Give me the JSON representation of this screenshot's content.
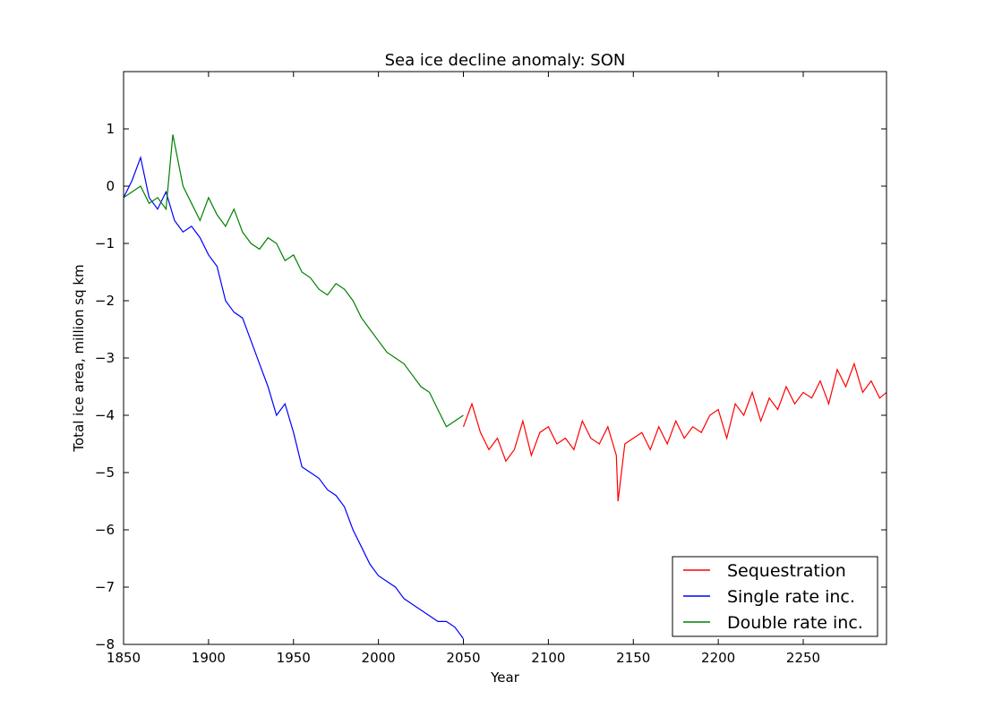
{
  "chart_data": {
    "type": "line",
    "title": "Sea ice decline anomaly: SON",
    "xlabel": "Year",
    "ylabel": "Total ice area, million sq km",
    "xlim": [
      1850,
      2299
    ],
    "ylim": [
      -8,
      2
    ],
    "xticks": [
      1850,
      1900,
      1950,
      2000,
      2050,
      2100,
      2150,
      2200,
      2250
    ],
    "yticks": [
      1,
      0,
      -1,
      -2,
      -3,
      -4,
      -5,
      -6,
      -7,
      -8
    ],
    "grid": false,
    "legend_position": "lower-right",
    "series": [
      {
        "name": "Sequestration",
        "color": "#ff0000",
        "x": [
          2050,
          2055,
          2060,
          2065,
          2070,
          2075,
          2080,
          2085,
          2090,
          2095,
          2100,
          2105,
          2110,
          2115,
          2120,
          2125,
          2130,
          2135,
          2140,
          2141,
          2145,
          2150,
          2155,
          2160,
          2165,
          2170,
          2175,
          2180,
          2185,
          2190,
          2195,
          2200,
          2205,
          2210,
          2215,
          2220,
          2225,
          2230,
          2235,
          2240,
          2245,
          2250,
          2255,
          2260,
          2265,
          2270,
          2275,
          2280,
          2285,
          2290,
          2295,
          2299
        ],
        "y": [
          -4.2,
          -3.8,
          -4.3,
          -4.6,
          -4.4,
          -4.8,
          -4.6,
          -4.1,
          -4.7,
          -4.3,
          -4.2,
          -4.5,
          -4.4,
          -4.6,
          -4.1,
          -4.4,
          -4.5,
          -4.2,
          -4.7,
          -5.5,
          -4.5,
          -4.4,
          -4.3,
          -4.6,
          -4.2,
          -4.5,
          -4.1,
          -4.4,
          -4.2,
          -4.3,
          -4.0,
          -3.9,
          -4.4,
          -3.8,
          -4.0,
          -3.6,
          -4.1,
          -3.7,
          -3.9,
          -3.5,
          -3.8,
          -3.6,
          -3.7,
          -3.4,
          -3.8,
          -3.2,
          -3.5,
          -3.1,
          -3.6,
          -3.4,
          -3.7,
          -3.6
        ]
      },
      {
        "name": "Single rate inc.",
        "color": "#0000ff",
        "x": [
          1850,
          1855,
          1860,
          1865,
          1870,
          1875,
          1880,
          1885,
          1890,
          1895,
          1900,
          1905,
          1910,
          1915,
          1920,
          1925,
          1930,
          1935,
          1940,
          1945,
          1950,
          1955,
          1960,
          1965,
          1970,
          1975,
          1980,
          1985,
          1990,
          1995,
          2000,
          2005,
          2010,
          2015,
          2020,
          2025,
          2030,
          2035,
          2040,
          2045,
          2050
        ],
        "y": [
          -0.2,
          0.1,
          0.5,
          -0.2,
          -0.4,
          -0.1,
          -0.6,
          -0.8,
          -0.7,
          -0.9,
          -1.2,
          -1.4,
          -2.0,
          -2.2,
          -2.3,
          -2.7,
          -3.1,
          -3.5,
          -4.0,
          -3.8,
          -4.3,
          -4.9,
          -5.0,
          -5.1,
          -5.3,
          -5.4,
          -5.6,
          -6.0,
          -6.3,
          -6.6,
          -6.8,
          -6.9,
          -7.0,
          -7.2,
          -7.3,
          -7.4,
          -7.5,
          -7.6,
          -7.6,
          -7.7,
          -7.9
        ]
      },
      {
        "name": "Double rate inc.",
        "color": "#008000",
        "x": [
          1850,
          1855,
          1860,
          1865,
          1870,
          1875,
          1879,
          1885,
          1890,
          1895,
          1900,
          1905,
          1910,
          1915,
          1920,
          1925,
          1930,
          1935,
          1940,
          1945,
          1950,
          1955,
          1960,
          1965,
          1970,
          1975,
          1980,
          1985,
          1990,
          1995,
          2000,
          2005,
          2010,
          2015,
          2020,
          2025,
          2030,
          2035,
          2040,
          2045,
          2050
        ],
        "y": [
          -0.2,
          -0.1,
          0.0,
          -0.3,
          -0.2,
          -0.4,
          0.9,
          0.0,
          -0.3,
          -0.6,
          -0.2,
          -0.5,
          -0.7,
          -0.4,
          -0.8,
          -1.0,
          -1.1,
          -0.9,
          -1.0,
          -1.3,
          -1.2,
          -1.5,
          -1.6,
          -1.8,
          -1.9,
          -1.7,
          -1.8,
          -2.0,
          -2.3,
          -2.5,
          -2.7,
          -2.9,
          -3.0,
          -3.1,
          -3.3,
          -3.5,
          -3.6,
          -3.9,
          -4.2,
          -4.1,
          -4.0
        ]
      }
    ]
  }
}
